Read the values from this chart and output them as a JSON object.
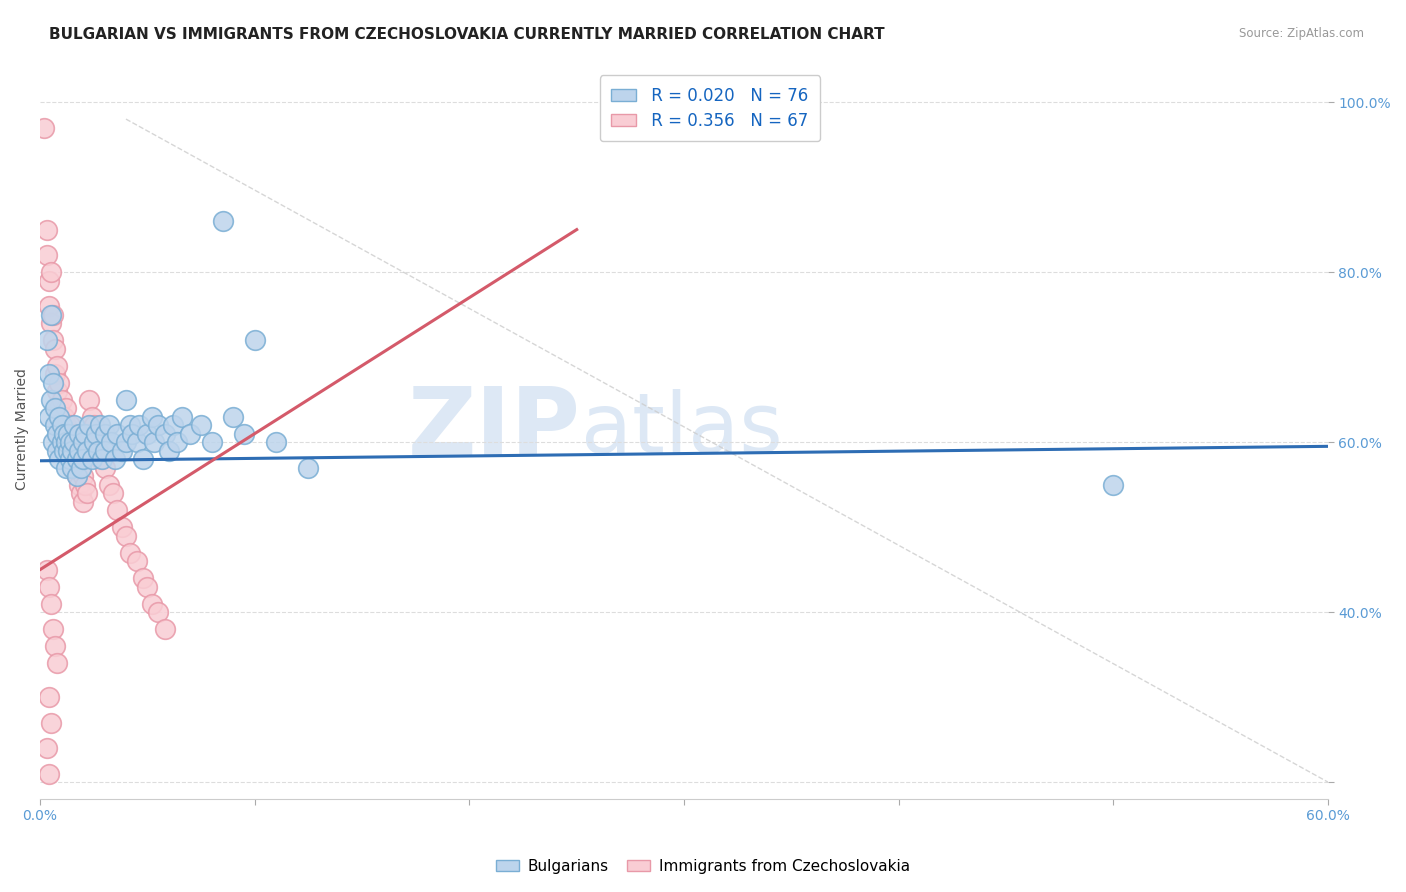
{
  "title": "BULGARIAN VS IMMIGRANTS FROM CZECHOSLOVAKIA CURRENTLY MARRIED CORRELATION CHART",
  "source": "Source: ZipAtlas.com",
  "ylabel": "Currently Married",
  "xlim": [
    0.0,
    0.6
  ],
  "ylim": [
    0.18,
    1.05
  ],
  "xticks": [
    0.0,
    0.1,
    0.2,
    0.3,
    0.4,
    0.5,
    0.6
  ],
  "xticklabels": [
    "0.0%",
    "",
    "",
    "",
    "",
    "",
    "60.0%"
  ],
  "yticks": [
    0.2,
    0.4,
    0.6,
    0.8,
    1.0
  ],
  "yticklabels": [
    "",
    "40.0%",
    "60.0%",
    "80.0%",
    "100.0%"
  ],
  "R_blue": "0.020",
  "N_blue": "76",
  "R_pink": "0.356",
  "N_pink": "67",
  "blue_scatter": [
    [
      0.003,
      0.72
    ],
    [
      0.004,
      0.68
    ],
    [
      0.005,
      0.75
    ],
    [
      0.004,
      0.63
    ],
    [
      0.005,
      0.65
    ],
    [
      0.006,
      0.67
    ],
    [
      0.006,
      0.6
    ],
    [
      0.007,
      0.62
    ],
    [
      0.007,
      0.64
    ],
    [
      0.008,
      0.61
    ],
    [
      0.008,
      0.59
    ],
    [
      0.009,
      0.63
    ],
    [
      0.009,
      0.58
    ],
    [
      0.01,
      0.6
    ],
    [
      0.01,
      0.62
    ],
    [
      0.011,
      0.59
    ],
    [
      0.011,
      0.61
    ],
    [
      0.012,
      0.6
    ],
    [
      0.012,
      0.57
    ],
    [
      0.013,
      0.59
    ],
    [
      0.013,
      0.61
    ],
    [
      0.014,
      0.58
    ],
    [
      0.014,
      0.6
    ],
    [
      0.015,
      0.59
    ],
    [
      0.015,
      0.57
    ],
    [
      0.016,
      0.6
    ],
    [
      0.016,
      0.62
    ],
    [
      0.017,
      0.58
    ],
    [
      0.017,
      0.56
    ],
    [
      0.018,
      0.59
    ],
    [
      0.018,
      0.61
    ],
    [
      0.019,
      0.57
    ],
    [
      0.02,
      0.6
    ],
    [
      0.02,
      0.58
    ],
    [
      0.021,
      0.61
    ],
    [
      0.022,
      0.59
    ],
    [
      0.023,
      0.62
    ],
    [
      0.024,
      0.58
    ],
    [
      0.025,
      0.6
    ],
    [
      0.026,
      0.61
    ],
    [
      0.027,
      0.59
    ],
    [
      0.028,
      0.62
    ],
    [
      0.029,
      0.58
    ],
    [
      0.03,
      0.61
    ],
    [
      0.03,
      0.59
    ],
    [
      0.032,
      0.62
    ],
    [
      0.033,
      0.6
    ],
    [
      0.035,
      0.58
    ],
    [
      0.036,
      0.61
    ],
    [
      0.038,
      0.59
    ],
    [
      0.04,
      0.65
    ],
    [
      0.04,
      0.6
    ],
    [
      0.042,
      0.62
    ],
    [
      0.043,
      0.61
    ],
    [
      0.045,
      0.6
    ],
    [
      0.046,
      0.62
    ],
    [
      0.048,
      0.58
    ],
    [
      0.05,
      0.61
    ],
    [
      0.052,
      0.63
    ],
    [
      0.053,
      0.6
    ],
    [
      0.055,
      0.62
    ],
    [
      0.058,
      0.61
    ],
    [
      0.06,
      0.59
    ],
    [
      0.062,
      0.62
    ],
    [
      0.064,
      0.6
    ],
    [
      0.066,
      0.63
    ],
    [
      0.07,
      0.61
    ],
    [
      0.075,
      0.62
    ],
    [
      0.08,
      0.6
    ],
    [
      0.085,
      0.86
    ],
    [
      0.09,
      0.63
    ],
    [
      0.095,
      0.61
    ],
    [
      0.1,
      0.72
    ],
    [
      0.11,
      0.6
    ],
    [
      0.125,
      0.57
    ],
    [
      0.5,
      0.55
    ]
  ],
  "pink_scatter": [
    [
      0.002,
      0.97
    ],
    [
      0.003,
      0.85
    ],
    [
      0.003,
      0.82
    ],
    [
      0.004,
      0.79
    ],
    [
      0.004,
      0.76
    ],
    [
      0.005,
      0.74
    ],
    [
      0.005,
      0.8
    ],
    [
      0.006,
      0.72
    ],
    [
      0.006,
      0.75
    ],
    [
      0.007,
      0.71
    ],
    [
      0.007,
      0.68
    ],
    [
      0.008,
      0.69
    ],
    [
      0.008,
      0.66
    ],
    [
      0.009,
      0.67
    ],
    [
      0.009,
      0.64
    ],
    [
      0.01,
      0.65
    ],
    [
      0.01,
      0.62
    ],
    [
      0.011,
      0.63
    ],
    [
      0.011,
      0.61
    ],
    [
      0.012,
      0.64
    ],
    [
      0.012,
      0.62
    ],
    [
      0.013,
      0.61
    ],
    [
      0.013,
      0.59
    ],
    [
      0.014,
      0.62
    ],
    [
      0.014,
      0.6
    ],
    [
      0.015,
      0.61
    ],
    [
      0.015,
      0.58
    ],
    [
      0.016,
      0.6
    ],
    [
      0.016,
      0.57
    ],
    [
      0.017,
      0.59
    ],
    [
      0.017,
      0.56
    ],
    [
      0.018,
      0.58
    ],
    [
      0.018,
      0.55
    ],
    [
      0.019,
      0.57
    ],
    [
      0.019,
      0.54
    ],
    [
      0.02,
      0.56
    ],
    [
      0.02,
      0.53
    ],
    [
      0.021,
      0.55
    ],
    [
      0.022,
      0.54
    ],
    [
      0.023,
      0.65
    ],
    [
      0.024,
      0.63
    ],
    [
      0.025,
      0.62
    ],
    [
      0.026,
      0.6
    ],
    [
      0.028,
      0.58
    ],
    [
      0.03,
      0.57
    ],
    [
      0.032,
      0.55
    ],
    [
      0.034,
      0.54
    ],
    [
      0.036,
      0.52
    ],
    [
      0.038,
      0.5
    ],
    [
      0.04,
      0.49
    ],
    [
      0.042,
      0.47
    ],
    [
      0.045,
      0.46
    ],
    [
      0.048,
      0.44
    ],
    [
      0.05,
      0.43
    ],
    [
      0.052,
      0.41
    ],
    [
      0.055,
      0.4
    ],
    [
      0.058,
      0.38
    ],
    [
      0.003,
      0.45
    ],
    [
      0.004,
      0.43
    ],
    [
      0.005,
      0.41
    ],
    [
      0.006,
      0.38
    ],
    [
      0.007,
      0.36
    ],
    [
      0.008,
      0.34
    ],
    [
      0.004,
      0.3
    ],
    [
      0.005,
      0.27
    ],
    [
      0.003,
      0.24
    ],
    [
      0.004,
      0.21
    ]
  ],
  "blue_line_x": [
    0.0,
    0.6
  ],
  "blue_line_y": [
    0.578,
    0.595
  ],
  "pink_line_x": [
    0.0,
    0.25
  ],
  "pink_line_y": [
    0.45,
    0.85
  ],
  "diag_line_x": [
    0.04,
    0.6
  ],
  "diag_line_y": [
    0.98,
    0.2
  ],
  "bg_color": "#ffffff",
  "grid_color": "#dddddd",
  "title_fontsize": 11,
  "axis_label_fontsize": 10,
  "tick_fontsize": 10,
  "watermark_line1": "ZIP",
  "watermark_line2": "atlas",
  "watermark_color": "#dde8f5"
}
